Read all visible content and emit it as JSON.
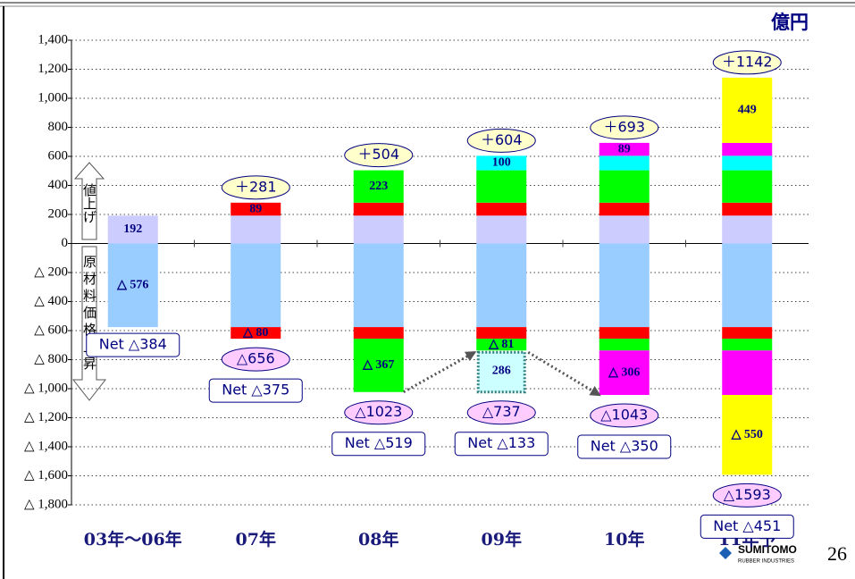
{
  "chart_data": {
    "type": "stacked_bar",
    "unit": "億円",
    "up_label": "値上げ",
    "down_label": "原材料価格上昇",
    "categories": [
      "03年～06年",
      "07年",
      "08年",
      "09年",
      "10年",
      "11年予"
    ],
    "ylim": [
      -1800,
      1400
    ],
    "yticks": [
      {
        "value": 1400,
        "label": "1,400"
      },
      {
        "value": 1200,
        "label": "1,200"
      },
      {
        "value": 1000,
        "label": "1,000"
      },
      800,
      600,
      400,
      200,
      0,
      {
        "value": -200,
        "label": "△ 200"
      },
      {
        "value": -400,
        "label": "△ 400"
      },
      {
        "value": -600,
        "label": "△ 600"
      },
      {
        "value": -800,
        "label": "△ 800"
      },
      {
        "value": -1000,
        "label": "△ 1,000"
      },
      {
        "value": -1200,
        "label": "△ 1,200"
      },
      {
        "value": -1400,
        "label": "△ 1,400"
      },
      {
        "value": -1600,
        "label": "△ 1,600"
      },
      {
        "value": -1800,
        "label": "△ 1,800"
      }
    ],
    "grid": true,
    "series": [
      {
        "color": "#ccccff",
        "values": [
          192,
          192,
          192,
          192,
          192,
          192
        ],
        "value_labels": [
          "192",
          null,
          null,
          null,
          null,
          null
        ]
      },
      {
        "color": "#ff0000",
        "values": [
          null,
          89,
          89,
          89,
          89,
          89
        ],
        "value_labels": [
          null,
          "89",
          null,
          null,
          null,
          null
        ]
      },
      {
        "color": "#00ff00",
        "values": [
          null,
          null,
          223,
          223,
          223,
          223
        ],
        "value_labels": [
          null,
          null,
          "223",
          null,
          null,
          null
        ]
      },
      {
        "color": "#00ffff",
        "values": [
          null,
          null,
          null,
          100,
          100,
          100
        ],
        "value_labels": [
          null,
          null,
          null,
          "100",
          null,
          null
        ]
      },
      {
        "color": "#ff00ff",
        "values": [
          null,
          null,
          null,
          null,
          89,
          89
        ],
        "value_labels": [
          null,
          null,
          null,
          null,
          "89",
          null
        ]
      },
      {
        "color": "#ffff00",
        "values": [
          null,
          null,
          null,
          null,
          null,
          449
        ],
        "value_labels": [
          null,
          null,
          null,
          null,
          null,
          "449"
        ]
      },
      {
        "color": "#99ccff",
        "values": [
          -576,
          -576,
          -576,
          -576,
          -576,
          -576
        ],
        "value_labels": [
          "△ 576",
          null,
          null,
          null,
          null,
          null
        ]
      },
      {
        "color": "#ff0000",
        "values": [
          null,
          -80,
          -80,
          -80,
          -80,
          -80
        ],
        "value_labels": [
          null,
          "△ 80",
          null,
          null,
          null,
          null
        ]
      },
      {
        "color": "#00ff00",
        "values": [
          null,
          null,
          -367,
          -81,
          -81,
          -81
        ],
        "value_labels": [
          null,
          null,
          "△ 367",
          "△ 81",
          null,
          null
        ]
      },
      {
        "color": "#ff00ff",
        "values": [
          null,
          null,
          null,
          null,
          -306,
          -306
        ],
        "value_labels": [
          null,
          null,
          null,
          null,
          "△ 306",
          null
        ]
      },
      {
        "color": "#ffff00",
        "values": [
          null,
          null,
          null,
          null,
          null,
          -550
        ],
        "value_labels": [
          null,
          null,
          null,
          null,
          null,
          "△ 550"
        ]
      }
    ],
    "reduction": {
      "category_index": 3,
      "value": 286,
      "color": "#ccffff"
    },
    "positive_totals": [
      null,
      "＋281",
      "＋504",
      "＋604",
      "＋693",
      "＋1142"
    ],
    "negative_totals": [
      null,
      "△656",
      "△1023",
      "△737",
      "△1043",
      "△1593"
    ],
    "net_labels": [
      "Net △384",
      "Net △375",
      "Net △519",
      "Net △133",
      "Net △350",
      "Net △451"
    ]
  },
  "logo": {
    "name": "SUMITOMO",
    "sub": "RUBBER INDUSTRIES"
  },
  "page_number": "26"
}
